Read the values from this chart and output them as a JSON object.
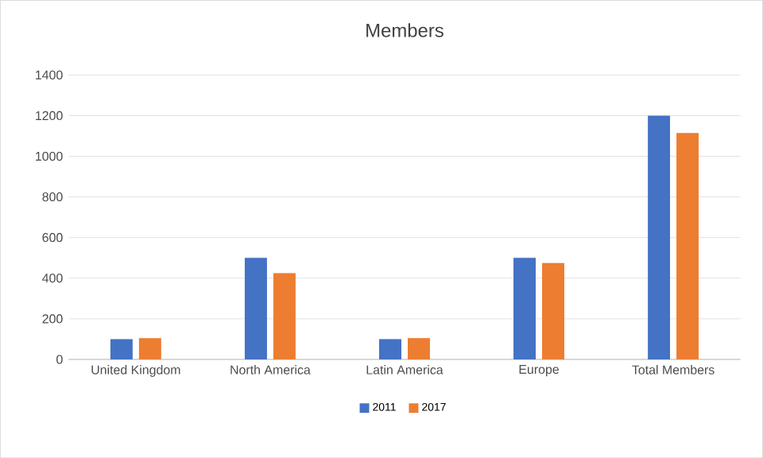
{
  "chart_data": {
    "type": "bar",
    "title": "Members",
    "categories": [
      "United Kingdom",
      "North America",
      "Latin America",
      "Europe",
      "Total Members"
    ],
    "series": [
      {
        "name": "2011",
        "color": "#4472c4",
        "values": [
          100,
          500,
          100,
          500,
          1200
        ]
      },
      {
        "name": "2017",
        "color": "#ed7d31",
        "values": [
          105,
          425,
          105,
          475,
          1115
        ]
      }
    ],
    "ylim": [
      0,
      1400
    ],
    "yticks": [
      0,
      200,
      400,
      600,
      800,
      1000,
      1200,
      1400
    ],
    "grid": "y",
    "legend": "bottom"
  }
}
